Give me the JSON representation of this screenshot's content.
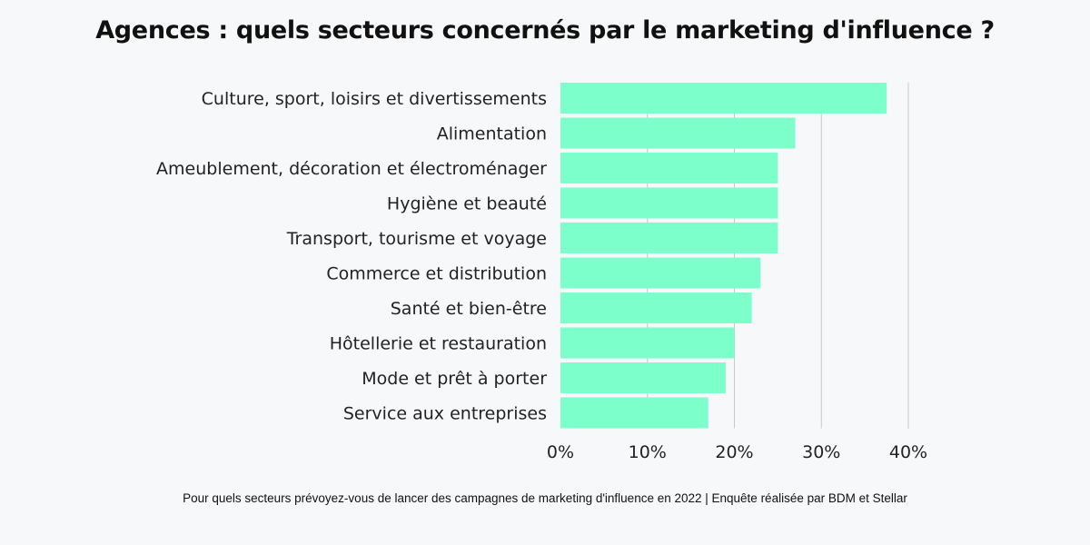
{
  "title": "Agences : quels secteurs concernés par le marketing d'influence ?",
  "caption": "Pour quels secteurs prévoyez-vous de lancer des campagnes de marketing d'influence en 2022 | Enquête réalisée par BDM et Stellar",
  "colors": {
    "bar": "#7dffcc",
    "grid": "#c8c8c8",
    "text": "#222222",
    "background": "#f7f8fa"
  },
  "chart_data": {
    "type": "bar",
    "orientation": "horizontal",
    "categories": [
      "Culture, sport, loisirs et divertissements",
      "Alimentation",
      "Ameublement, décoration et électroménager",
      "Hygiène et beauté",
      "Transport, tourisme et voyage",
      "Commerce et distribution",
      "Santé et bien-être",
      "Hôtellerie et restauration",
      "Mode et prêt à porter",
      "Service aux entreprises"
    ],
    "values": [
      37.5,
      27,
      25,
      25,
      25,
      23,
      22,
      20,
      19,
      17
    ],
    "xlim": [
      0,
      40
    ],
    "xticks": [
      0,
      10,
      20,
      30,
      40
    ],
    "xtick_labels": [
      "0%",
      "10%",
      "20%",
      "30%",
      "40%"
    ],
    "grid": true,
    "legend": false
  }
}
